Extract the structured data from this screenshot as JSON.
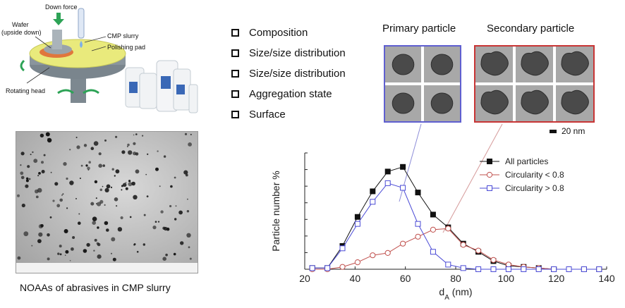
{
  "figure": {
    "cmp": {
      "down_force": "Down force",
      "wafer": "Wafer",
      "upside_down": "(upside down)",
      "slurry": "CMP slurry",
      "pad": "Polishing pad",
      "head": "Rotating head"
    },
    "tem_caption": "NOAAs of abrasives in CMP slurry",
    "checklist": [
      "Composition",
      "Size/size distribution",
      "Size/size distribution",
      "Aggregation state",
      "Surface"
    ],
    "primary_title": "Primary particle",
    "secondary_title": "Secondary particle",
    "scale_bar": "20 nm",
    "colors": {
      "black": "#111111",
      "red": "#c0504d",
      "blue": "#4b4bd6"
    }
  },
  "chart_data": {
    "type": "line",
    "ylabel": "Particle number %",
    "xlabel": "dA (nm)",
    "xlabel_base": "d",
    "xlabel_sub": "A",
    "xlabel_unit": " (nm)",
    "xlim": [
      20,
      140
    ],
    "ylim": [
      0,
      100
    ],
    "x_ticks": [
      20,
      40,
      60,
      80,
      100,
      120,
      140
    ],
    "y_tick_labels_shown": false,
    "legend_position": "top-right",
    "series": [
      {
        "name": "All particles",
        "color": "#111111",
        "marker": "filled-square",
        "x": [
          23,
          29,
          35,
          41,
          47,
          53,
          59,
          65,
          71,
          77,
          83,
          89,
          95,
          101,
          107,
          113,
          119,
          125,
          131,
          137
        ],
        "y": [
          1,
          1,
          20,
          45,
          67,
          84,
          88,
          66,
          47,
          36,
          22,
          15,
          7,
          3,
          2,
          1,
          0,
          0,
          0,
          0
        ]
      },
      {
        "name": "Circularity < 0.8",
        "color": "#c0504d",
        "marker": "open-circle",
        "x": [
          23,
          29,
          35,
          41,
          47,
          53,
          59,
          65,
          71,
          77,
          83,
          89,
          95,
          101,
          107,
          113,
          119,
          125,
          131,
          137
        ],
        "y": [
          0,
          0,
          2,
          6,
          12,
          14,
          22,
          28,
          34,
          35,
          21,
          16,
          8,
          4,
          2,
          1,
          0,
          0,
          0,
          0
        ]
      },
      {
        "name": "Circularity > 0.8",
        "color": "#4b4bd6",
        "marker": "open-square",
        "x": [
          23,
          29,
          35,
          41,
          47,
          53,
          59,
          65,
          71,
          77,
          83,
          89,
          95,
          101,
          107,
          113,
          119,
          125,
          131,
          137
        ],
        "y": [
          1,
          1,
          18,
          39,
          58,
          74,
          70,
          39,
          15,
          4,
          1,
          0,
          0,
          0,
          0,
          0,
          0,
          0,
          0,
          0
        ]
      }
    ]
  }
}
